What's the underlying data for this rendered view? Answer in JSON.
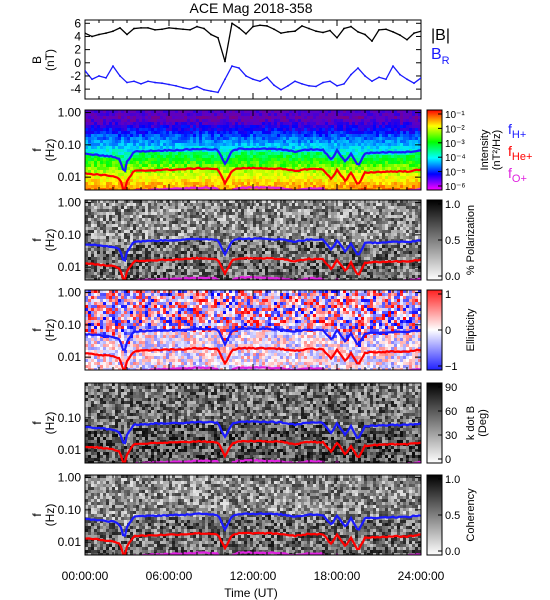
{
  "chart_data": [
    {
      "type": "line",
      "title": "ACE Mag 2018-358",
      "ylabel": "B",
      "yunit": "(nT)",
      "ylim": [
        -5.5,
        6.5
      ],
      "yticks": [
        "6",
        "4",
        "2",
        "0",
        "-2",
        "-4"
      ],
      "ytick_values": [
        6,
        4,
        2,
        0,
        -2,
        -4
      ],
      "legend": [
        {
          "label": "|B|",
          "color": "#000000"
        },
        {
          "label": "B",
          "sub": "R",
          "color": "#1a1aff"
        }
      ],
      "series": [
        {
          "name": "|B|",
          "color": "#000000",
          "x": [
            0,
            0.5,
            1,
            1.5,
            2,
            2.5,
            3,
            3.5,
            4,
            4.5,
            5,
            5.5,
            6,
            6.5,
            7,
            7.5,
            8,
            8.5,
            9,
            9.5,
            10,
            10.5,
            11,
            11.5,
            12,
            12.5,
            13,
            13.5,
            14,
            14.5,
            15,
            15.5,
            16,
            16.5,
            17,
            17.5,
            18,
            18.5,
            19,
            19.5,
            20,
            20.5,
            21,
            21.5,
            22,
            22.5,
            23,
            23.5,
            24
          ],
          "values": [
            4.5,
            4.0,
            4.3,
            4.5,
            4.8,
            5.3,
            4.3,
            5.2,
            5.3,
            5.3,
            5.0,
            5.1,
            5.3,
            5.2,
            5.1,
            5.0,
            5.5,
            5.2,
            4.3,
            3.8,
            0.2,
            6.0,
            5.3,
            4.4,
            5.5,
            5.7,
            5.6,
            5.1,
            4.5,
            4.7,
            4.8,
            5.6,
            5.2,
            4.8,
            4.6,
            4.9,
            3.8,
            5.2,
            5.5,
            4.7,
            4.3,
            3.3,
            5.0,
            5.1,
            4.7,
            4.2,
            3.5,
            4.5,
            4.8
          ]
        },
        {
          "name": "B_R",
          "color": "#1a1aff",
          "x": [
            0,
            0.5,
            1,
            1.5,
            2,
            2.5,
            3,
            3.5,
            4,
            4.5,
            5,
            5.5,
            6,
            6.5,
            7,
            7.5,
            8,
            8.5,
            9,
            9.5,
            10,
            10.5,
            11,
            11.5,
            12,
            12.5,
            13,
            13.5,
            14,
            14.5,
            15,
            15.5,
            16,
            16.5,
            17,
            17.5,
            18,
            18.5,
            19,
            19.5,
            20,
            20.5,
            21,
            21.5,
            22,
            22.5,
            23,
            23.5,
            24
          ],
          "values": [
            -1.2,
            -2.5,
            -2.0,
            -2.3,
            -0.5,
            -2.0,
            -3.0,
            -2.8,
            -3.2,
            -2.8,
            -3.0,
            -3.1,
            -3.3,
            -3.5,
            -3.8,
            -4.0,
            -3.6,
            -4.1,
            -4.3,
            -4.5,
            -2.5,
            -0.5,
            -0.8,
            -2.0,
            -2.5,
            -2.8,
            -2.2,
            -3.4,
            -4.1,
            -3.5,
            -2.8,
            -3.2,
            -3.5,
            -3.6,
            -3.0,
            -2.8,
            -3.5,
            -3.2,
            -1.8,
            -0.8,
            -2.0,
            -2.8,
            -2.2,
            -2.5,
            -0.5,
            -1.8,
            -2.5,
            -3.1,
            -2.3
          ]
        }
      ]
    },
    {
      "type": "heatmap",
      "ylabel": "f",
      "yunit": "(Hz)",
      "yscale": "log",
      "ylim": [
        0.004,
        1.2
      ],
      "yticks": [
        "1.00",
        "0.10",
        "0.01"
      ],
      "ytick_values": [
        1.0,
        0.1,
        0.01
      ],
      "colorbar": {
        "label": "Intensity",
        "unit": "(nT²/Hz)",
        "scale": "log",
        "ticks": [
          "10⁻¹",
          "10⁻²",
          "10⁻³",
          "10⁻⁴",
          "10⁻⁵",
          "10⁻⁶"
        ],
        "colors": [
          "#ff00ff",
          "#8000ff",
          "#0000ff",
          "#0080ff",
          "#00ffff",
          "#00ff80",
          "#00ff00",
          "#80ff00",
          "#ffff00",
          "#ff8000",
          "#ff0000"
        ]
      },
      "legend": [
        {
          "label": "f",
          "sub": "H+",
          "color": "#1a1aff"
        },
        {
          "label": "f",
          "sub": "He+",
          "color": "#ff0000"
        },
        {
          "label": "f",
          "sub": "O+",
          "color": "#e022e0"
        }
      ]
    },
    {
      "type": "heatmap",
      "ylabel": "f",
      "yunit": "(Hz)",
      "yscale": "log",
      "ylim": [
        0.004,
        1.2
      ],
      "yticks": [
        "1.00",
        "0.10",
        "0.01"
      ],
      "ytick_values": [
        1.0,
        0.1,
        0.01
      ],
      "colorbar": {
        "label": "% Polarization",
        "ticks": [
          "1.0",
          "0.5",
          "0.0"
        ],
        "colors": [
          "#ffffff",
          "#000000"
        ]
      }
    },
    {
      "type": "heatmap",
      "ylabel": "f",
      "yunit": "(Hz)",
      "yscale": "log",
      "ylim": [
        0.004,
        1.2
      ],
      "yticks": [
        "1.00",
        "0.10",
        "0.01"
      ],
      "ytick_values": [
        1.0,
        0.1,
        0.01
      ],
      "colorbar": {
        "label": "Ellipticity",
        "ticks": [
          "1",
          "0",
          "−1"
        ],
        "colors": [
          "#2020ff",
          "#ffffff",
          "#ff2020"
        ]
      }
    },
    {
      "type": "heatmap",
      "ylabel": "f",
      "yunit": "(Hz)",
      "yscale": "log",
      "ylim": [
        0.004,
        1.2
      ],
      "yticks": [
        "0.10",
        "0.01"
      ],
      "ytick_values": [
        0.1,
        0.01
      ],
      "colorbar": {
        "label": "k dot B",
        "unit": "(Deg)",
        "ticks": [
          "90",
          "60",
          "30",
          "0"
        ],
        "colors": [
          "#ffffff",
          "#000000"
        ]
      }
    },
    {
      "type": "heatmap",
      "ylabel": "f",
      "yunit": "(Hz)",
      "yscale": "log",
      "ylim": [
        0.004,
        1.2
      ],
      "yticks": [
        "1.00",
        "0.10",
        "0.01"
      ],
      "ytick_values": [
        1.0,
        0.1,
        0.01
      ],
      "colorbar": {
        "label": "Coherency",
        "ticks": [
          "1.0",
          "0.5",
          "0.0"
        ],
        "colors": [
          "#ffffff",
          "#000000"
        ]
      }
    }
  ],
  "gyro": {
    "x": [
      0,
      1,
      2,
      2.5,
      2.8,
      3.0,
      3.5,
      4,
      5,
      6,
      7,
      8,
      9,
      9.5,
      10,
      10.5,
      11,
      12,
      13,
      14,
      15,
      16,
      17,
      17.6,
      18,
      18.6,
      19,
      19.5,
      20,
      21,
      22,
      23,
      24
    ],
    "H": [
      0.052,
      0.048,
      0.043,
      0.035,
      0.013,
      0.03,
      0.062,
      0.063,
      0.066,
      0.068,
      0.07,
      0.075,
      0.073,
      0.07,
      0.025,
      0.065,
      0.075,
      0.076,
      0.075,
      0.072,
      0.062,
      0.072,
      0.07,
      0.034,
      0.068,
      0.03,
      0.055,
      0.022,
      0.055,
      0.058,
      0.06,
      0.06,
      0.068
    ],
    "He": [
      0.013,
      0.012,
      0.0108,
      0.0088,
      0.0033,
      0.0075,
      0.0155,
      0.0158,
      0.0165,
      0.017,
      0.0175,
      0.0188,
      0.0183,
      0.0175,
      0.0063,
      0.0163,
      0.0188,
      0.019,
      0.0188,
      0.018,
      0.0155,
      0.018,
      0.0175,
      0.0085,
      0.017,
      0.0075,
      0.0138,
      0.0055,
      0.0138,
      0.0145,
      0.015,
      0.015,
      0.017
    ],
    "O": [
      0.0033,
      0.003,
      0.0027,
      0.0022,
      0.0008,
      0.0019,
      0.0039,
      0.0039,
      0.0041,
      0.0043,
      0.0044,
      0.0047,
      0.0046,
      0.0044,
      0.0016,
      0.0041,
      0.0047,
      0.0048,
      0.0047,
      0.0045,
      0.0039,
      0.0045,
      0.0044,
      0.0021,
      0.0043,
      0.0019,
      0.0034,
      0.0014,
      0.0034,
      0.0036,
      0.0038,
      0.0038,
      0.0043
    ],
    "colors": {
      "H": "#1a1aff",
      "He": "#ff0000",
      "O": "#e022e0"
    }
  },
  "xaxis": {
    "label": "Time (UT)",
    "range": [
      0,
      24
    ],
    "ticks": [
      "00:00:00",
      "06:00:00",
      "12:00:00",
      "18:00:00",
      "24:00:00"
    ],
    "tick_values": [
      0,
      6,
      12,
      18,
      24
    ]
  }
}
